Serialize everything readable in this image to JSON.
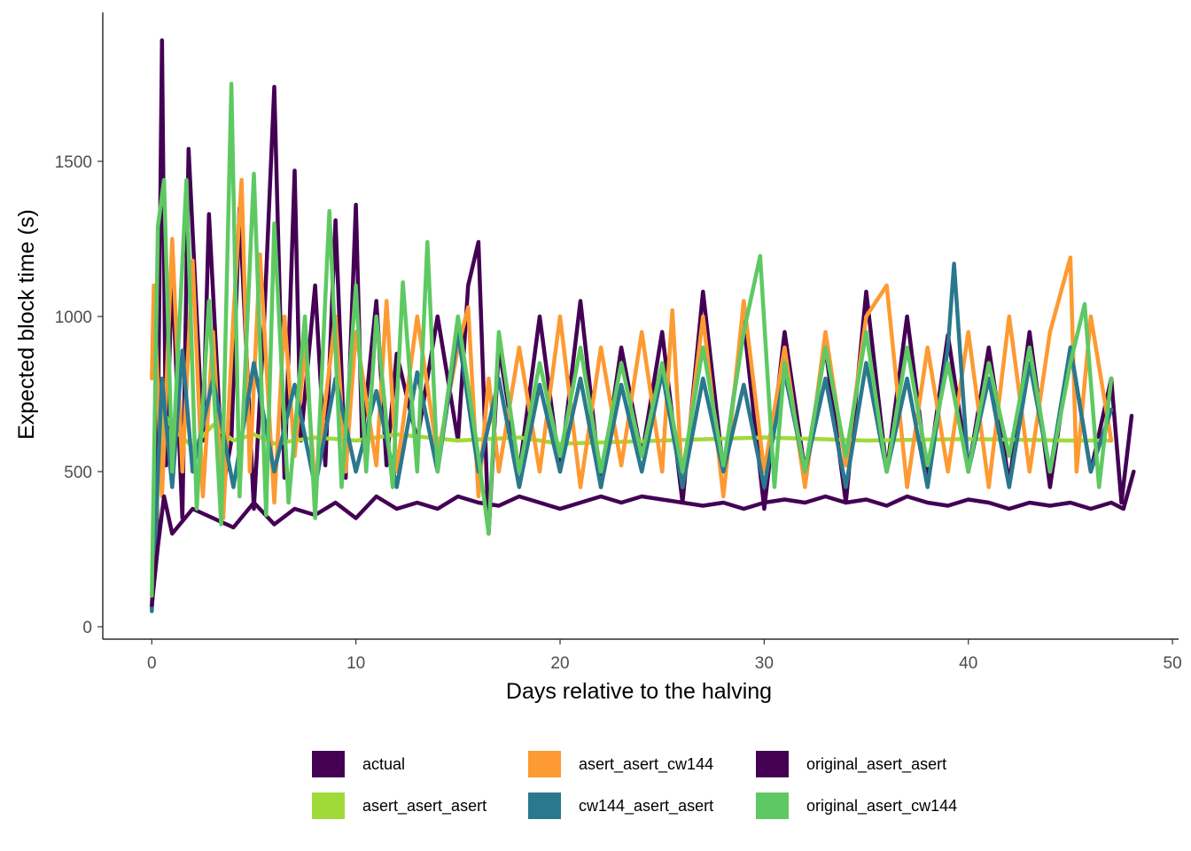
{
  "chart_data": {
    "type": "line",
    "title": "",
    "xlabel": "Days relative to the halving",
    "ylabel": "Expected block time (s)",
    "xlim": [
      -2.4,
      50.3
    ],
    "ylim": [
      -40,
      1980
    ],
    "x_ticks": [
      0,
      10,
      20,
      30,
      40,
      50
    ],
    "y_ticks": [
      0,
      500,
      1000,
      1500
    ],
    "grid": false,
    "legend_position": "bottom",
    "series": [
      {
        "name": "actual",
        "color": "#440154",
        "x": [
          0,
          0.25,
          0.5,
          0.7,
          1,
          1.5,
          1.8,
          2.5,
          2.8,
          3.5,
          3.9,
          4.3,
          5,
          5.5,
          6,
          6.5,
          7,
          7.3,
          8,
          8.5,
          9,
          9.5,
          10,
          10.3,
          11,
          11.5,
          12,
          13,
          14,
          15,
          15.5,
          16,
          16.5,
          17,
          18,
          19,
          20,
          21,
          22,
          23,
          24,
          25,
          26,
          27,
          28,
          29,
          30,
          31,
          32,
          33,
          34,
          35,
          36,
          37,
          38,
          39,
          40,
          41,
          42,
          43,
          44,
          45,
          46,
          47,
          47.5,
          48
        ],
        "y": [
          60,
          300,
          1890,
          520,
          1150,
          350,
          1540,
          600,
          1330,
          450,
          600,
          1350,
          380,
          980,
          1740,
          480,
          1470,
          600,
          1100,
          520,
          1310,
          480,
          1360,
          600,
          1050,
          520,
          880,
          600,
          1000,
          600,
          1100,
          1240,
          300,
          900,
          500,
          1000,
          500,
          1050,
          450,
          900,
          550,
          950,
          400,
          1080,
          500,
          980,
          380,
          950,
          500,
          900,
          400,
          1080,
          500,
          1000,
          480,
          940,
          500,
          900,
          460,
          950,
          450,
          900,
          500,
          800,
          400,
          680
        ]
      },
      {
        "name": "asert_asert_asert",
        "color": "#a0da39",
        "x": [
          0,
          0.5,
          1,
          2,
          3,
          4,
          5,
          6,
          8,
          10,
          12,
          15,
          18,
          20,
          25,
          30,
          35,
          40,
          45,
          47
        ],
        "y": [
          80,
          700,
          640,
          580,
          650,
          600,
          620,
          590,
          610,
          600,
          620,
          600,
          610,
          590,
          600,
          610,
          600,
          605,
          600,
          600
        ]
      },
      {
        "name": "asert_asert_cw144",
        "color": "#fd9a32",
        "x": [
          0,
          0.1,
          0.5,
          1,
          1.5,
          2,
          2.5,
          3,
          3.5,
          4,
          4.4,
          4.8,
          5.3,
          6,
          6.5,
          7,
          7.5,
          8,
          9,
          9.5,
          10,
          11,
          11.5,
          12,
          13,
          14,
          15,
          15.5,
          16,
          16.5,
          17,
          18,
          19,
          20,
          21,
          22,
          23,
          24,
          25,
          25.5,
          26,
          27,
          28,
          29,
          30,
          31,
          32,
          33,
          34,
          35,
          36,
          37,
          38,
          39,
          40,
          41,
          42,
          43,
          44,
          45,
          45.3,
          46,
          47
        ],
        "y": [
          800,
          1100,
          420,
          1250,
          500,
          1180,
          420,
          950,
          350,
          1000,
          1440,
          500,
          1200,
          400,
          1000,
          550,
          900,
          450,
          1000,
          500,
          950,
          520,
          1050,
          500,
          1000,
          550,
          900,
          1030,
          420,
          800,
          500,
          900,
          500,
          1000,
          450,
          900,
          520,
          950,
          500,
          1020,
          450,
          1000,
          420,
          1050,
          500,
          900,
          450,
          950,
          520,
          1000,
          1100,
          450,
          900,
          500,
          950,
          450,
          1000,
          500,
          950,
          1190,
          500,
          1000,
          600
        ]
      },
      {
        "name": "cw144_asert_asert",
        "color": "#2a788e",
        "x": [
          0,
          0.5,
          1,
          1.5,
          2,
          3,
          4,
          5,
          6,
          7,
          8,
          9,
          10,
          11,
          12,
          13,
          14,
          15,
          16,
          17,
          18,
          19,
          20,
          21,
          22,
          23,
          24,
          25,
          26,
          27,
          28,
          29,
          30,
          31,
          32,
          33,
          34,
          35,
          36,
          37,
          38,
          39,
          39.3,
          40,
          41,
          42,
          43,
          44,
          45,
          46,
          47
        ],
        "y": [
          50,
          800,
          450,
          890,
          500,
          800,
          450,
          850,
          500,
          780,
          450,
          800,
          500,
          760,
          450,
          820,
          500,
          950,
          500,
          800,
          450,
          780,
          500,
          800,
          450,
          780,
          500,
          820,
          450,
          800,
          500,
          780,
          450,
          820,
          500,
          800,
          450,
          850,
          500,
          800,
          450,
          900,
          1170,
          500,
          800,
          450,
          850,
          500,
          900,
          500,
          700
        ]
      },
      {
        "name": "original_asert_asert",
        "color": "#440154",
        "x": [
          0,
          0.3,
          0.6,
          1,
          2,
          3,
          4,
          5,
          6,
          7,
          8,
          9,
          10,
          11,
          12,
          13,
          14,
          15,
          16,
          17,
          18,
          19,
          20,
          21,
          22,
          23,
          24,
          25,
          26,
          27,
          28,
          29,
          30,
          31,
          32,
          33,
          34,
          35,
          36,
          37,
          38,
          39,
          40,
          41,
          42,
          43,
          44,
          45,
          46,
          47,
          47.6,
          48.1
        ],
        "y": [
          70,
          260,
          420,
          300,
          380,
          350,
          320,
          400,
          330,
          380,
          360,
          400,
          350,
          420,
          380,
          400,
          380,
          420,
          400,
          390,
          420,
          400,
          380,
          400,
          420,
          400,
          420,
          410,
          400,
          390,
          400,
          380,
          400,
          410,
          400,
          420,
          400,
          410,
          390,
          420,
          400,
          390,
          410,
          400,
          380,
          400,
          390,
          400,
          380,
          400,
          380,
          500
        ]
      },
      {
        "name": "original_asert_cw144",
        "color": "#5ec962",
        "x": [
          0,
          0.3,
          0.6,
          1,
          1.7,
          2.2,
          2.8,
          3.4,
          3.9,
          4.3,
          5,
          5.6,
          6,
          6.7,
          7.5,
          8,
          8.7,
          9.3,
          10,
          10.5,
          11,
          11.8,
          12.3,
          13,
          13.5,
          14,
          15,
          16,
          16.5,
          17,
          18,
          19,
          20,
          21,
          22,
          23,
          24,
          25,
          26,
          27,
          28,
          29,
          29.8,
          30.5,
          31,
          32,
          33,
          34,
          35,
          36,
          37,
          38,
          39,
          40,
          41,
          42,
          43,
          44,
          45,
          45.7,
          46.4,
          47
        ],
        "y": [
          100,
          1290,
          1440,
          500,
          1440,
          380,
          1050,
          330,
          1750,
          420,
          1460,
          360,
          1300,
          400,
          1000,
          350,
          1340,
          450,
          1100,
          500,
          1000,
          450,
          1110,
          500,
          1240,
          500,
          1000,
          550,
          300,
          950,
          500,
          850,
          550,
          900,
          500,
          850,
          550,
          850,
          500,
          900,
          520,
          950,
          1195,
          450,
          850,
          500,
          900,
          550,
          950,
          500,
          900,
          520,
          850,
          500,
          850,
          550,
          900,
          500,
          850,
          1040,
          450,
          800
        ]
      }
    ]
  },
  "legend": {
    "items": [
      {
        "label": "actual",
        "color": "#440154"
      },
      {
        "label": "asert_asert_asert",
        "color": "#a0da39"
      },
      {
        "label": "asert_asert_cw144",
        "color": "#fd9a32"
      },
      {
        "label": "cw144_asert_asert",
        "color": "#2a788e"
      },
      {
        "label": "original_asert_asert",
        "color": "#440154"
      },
      {
        "label": "original_asert_cw144",
        "color": "#5ec962"
      }
    ]
  }
}
